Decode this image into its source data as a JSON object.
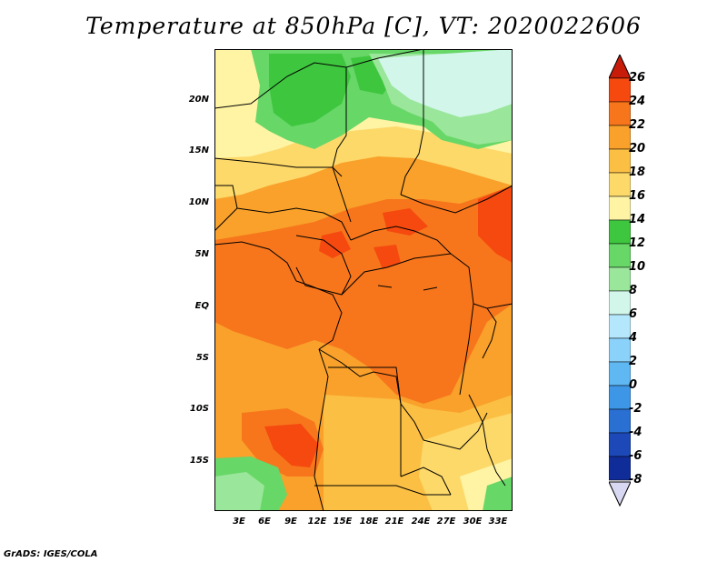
{
  "title": "Temperature at 850hPa [C], VT: 2020022606",
  "footer": "GrADS: IGES/COLA",
  "map": {
    "lat_labels": [
      "20N",
      "15N",
      "10N",
      "5N",
      "EQ",
      "5S",
      "10S",
      "15S"
    ],
    "lon_labels": [
      "3E",
      "6E",
      "9E",
      "12E",
      "15E",
      "18E",
      "21E",
      "24E",
      "27E",
      "30E",
      "33E"
    ]
  },
  "colorbar": {
    "labels": [
      "26",
      "24",
      "22",
      "20",
      "18",
      "16",
      "14",
      "12",
      "10",
      "8",
      "6",
      "4",
      "2",
      "0",
      "-2",
      "-4",
      "-6",
      "-8"
    ],
    "colors": [
      "#d92b0a",
      "#f5490f",
      "#f7761c",
      "#f9a12a",
      "#fbbf44",
      "#fdd96a",
      "#fef4a4",
      "#3ec63e",
      "#67d767",
      "#9ae69a",
      "#d2f6ea",
      "#b4e7fb",
      "#8ad2fa",
      "#5fb8f2",
      "#3e96e6",
      "#2a6fd2",
      "#1c48b8",
      "#102c98",
      "#0a1670"
    ],
    "top_arrow_color": "#c71c09",
    "bottom_arrow_color": "#d8d8f2"
  },
  "palette": {
    "field_base": "#f9a12a",
    "warm": "#f7761c",
    "hot": "#f5490f",
    "mild": "#fbbf44",
    "cool": "#fdd96a",
    "pale": "#fef4a4",
    "green_dark": "#3ec63e",
    "green_mid": "#67d767",
    "green_light": "#9ae69a",
    "cyan_pale": "#d2f6ea",
    "border": "#000000"
  }
}
